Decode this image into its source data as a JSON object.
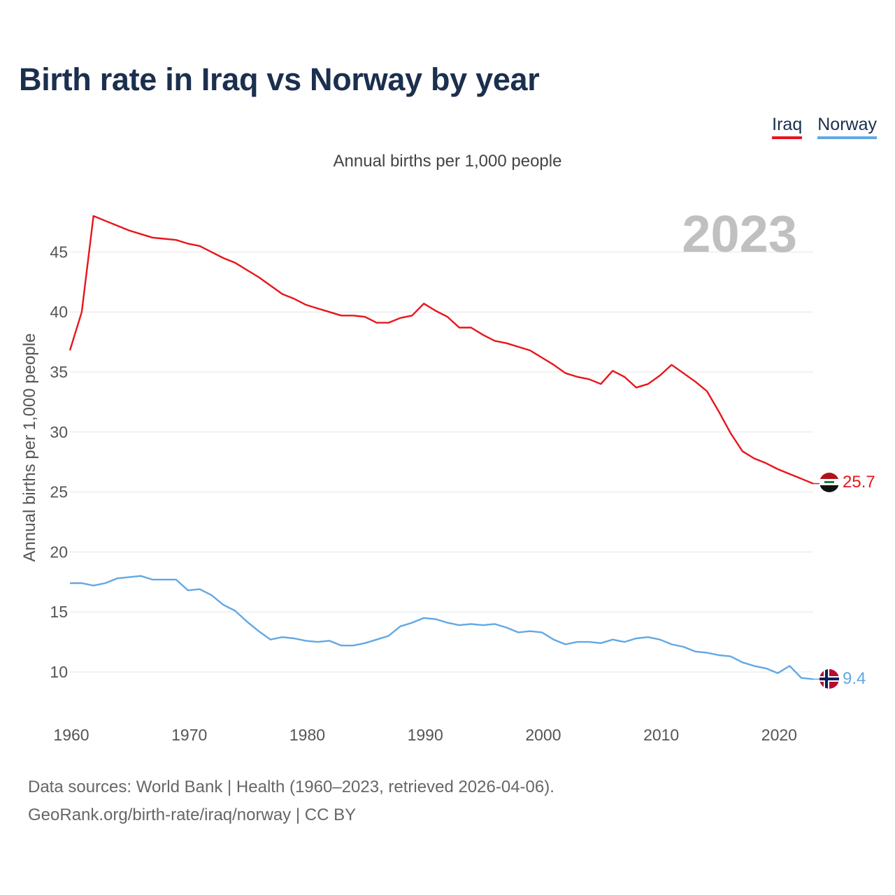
{
  "title": "Birth rate in Iraq vs Norway by year",
  "subtitle": "Annual births per 1,000 people",
  "legend": [
    {
      "name": "Iraq",
      "color": "#e8151b"
    },
    {
      "name": "Norway",
      "color": "#62a8e4"
    }
  ],
  "year_label": "2023",
  "footer": {
    "line1": "Data sources: World Bank | Health (1960–2023, retrieved 2026-04-06).",
    "line2": "GeoRank.org/birth-rate/iraq/norway | CC BY"
  },
  "chart_data": {
    "type": "line",
    "title": "Birth rate in Iraq vs Norway by year",
    "xlabel": "",
    "ylabel": "Annual births per 1,000 people",
    "xlim": [
      1960,
      2023
    ],
    "ylim": [
      7,
      50
    ],
    "x_ticks": [
      1960,
      1970,
      1980,
      1990,
      2000,
      2010,
      2020
    ],
    "y_ticks": [
      10,
      15,
      20,
      25,
      30,
      35,
      40,
      45
    ],
    "grid": true,
    "legend_position": "top-right",
    "x": [
      1960,
      1961,
      1962,
      1963,
      1964,
      1965,
      1966,
      1967,
      1968,
      1969,
      1970,
      1971,
      1972,
      1973,
      1974,
      1975,
      1976,
      1977,
      1978,
      1979,
      1980,
      1981,
      1982,
      1983,
      1984,
      1985,
      1986,
      1987,
      1988,
      1989,
      1990,
      1991,
      1992,
      1993,
      1994,
      1995,
      1996,
      1997,
      1998,
      1999,
      2000,
      2001,
      2002,
      2003,
      2004,
      2005,
      2006,
      2007,
      2008,
      2009,
      2010,
      2011,
      2012,
      2013,
      2014,
      2015,
      2016,
      2017,
      2018,
      2019,
      2020,
      2021,
      2022,
      2023
    ],
    "series": [
      {
        "name": "Iraq",
        "color": "#e8151b",
        "end_label": "25.7",
        "values": [
          36.8,
          40.0,
          48.0,
          47.6,
          47.2,
          46.8,
          46.5,
          46.2,
          46.1,
          46.0,
          45.7,
          45.5,
          45.0,
          44.5,
          44.1,
          43.5,
          42.9,
          42.2,
          41.5,
          41.1,
          40.6,
          40.3,
          40.0,
          39.7,
          39.7,
          39.6,
          39.1,
          39.1,
          39.5,
          39.7,
          40.7,
          40.1,
          39.6,
          38.7,
          38.7,
          38.1,
          37.6,
          37.4,
          37.1,
          36.8,
          36.2,
          35.6,
          34.9,
          34.6,
          34.4,
          34.0,
          35.1,
          34.6,
          33.7,
          34.0,
          34.7,
          35.6,
          34.9,
          34.2,
          33.4,
          31.7,
          29.9,
          28.4,
          27.8,
          27.4,
          26.9,
          26.5,
          26.1,
          25.7
        ]
      },
      {
        "name": "Norway",
        "color": "#62a8e4",
        "end_label": "9.4",
        "values": [
          17.4,
          17.4,
          17.2,
          17.4,
          17.8,
          17.9,
          18.0,
          17.7,
          17.7,
          17.7,
          16.8,
          16.9,
          16.4,
          15.6,
          15.1,
          14.2,
          13.4,
          12.7,
          12.9,
          12.8,
          12.6,
          12.5,
          12.6,
          12.2,
          12.2,
          12.4,
          12.7,
          13.0,
          13.8,
          14.1,
          14.5,
          14.4,
          14.1,
          13.9,
          14.0,
          13.9,
          14.0,
          13.7,
          13.3,
          13.4,
          13.3,
          12.7,
          12.3,
          12.5,
          12.5,
          12.4,
          12.7,
          12.5,
          12.8,
          12.9,
          12.7,
          12.3,
          12.1,
          11.7,
          11.6,
          11.4,
          11.3,
          10.8,
          10.5,
          10.3,
          9.9,
          10.5,
          9.5,
          9.4
        ]
      }
    ]
  }
}
